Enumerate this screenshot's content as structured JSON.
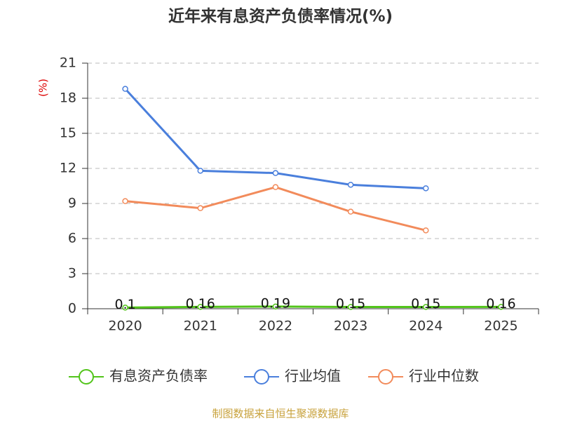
{
  "chart_data": {
    "type": "line",
    "title": "近年来有息资产负债率情况(%)",
    "y_label": "(%)",
    "categories": [
      "2020",
      "2021",
      "2022",
      "2023",
      "2024",
      "2025"
    ],
    "series": [
      {
        "name": "有息资产负债率",
        "color": "#52c41a",
        "values": [
          0.1,
          0.16,
          0.19,
          0.15,
          0.15,
          0.16
        ],
        "show_labels": true
      },
      {
        "name": "行业均值",
        "color": "#4a7fdc",
        "values": [
          18.8,
          11.8,
          11.6,
          10.6,
          10.3,
          null
        ]
      },
      {
        "name": "行业中位数",
        "color": "#f28b5b",
        "values": [
          9.2,
          8.6,
          10.4,
          8.3,
          6.7,
          null
        ]
      }
    ],
    "ylim": [
      0,
      21
    ],
    "yticks": [
      0,
      3,
      6,
      9,
      12,
      15,
      18,
      21
    ],
    "grid": true,
    "source": "制图数据来自恒生聚源数据库"
  }
}
